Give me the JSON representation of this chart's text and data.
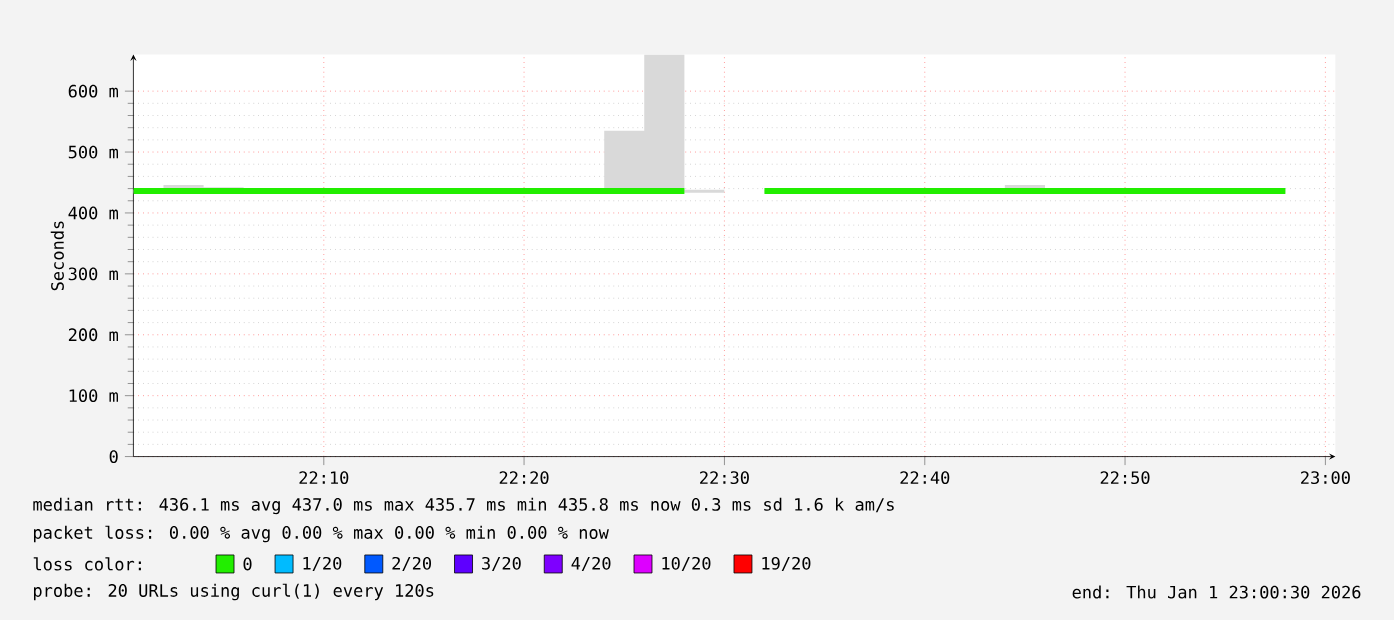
{
  "chart_data": {
    "type": "step",
    "ylabel": "Seconds",
    "x": [
      22.0083,
      22.0333,
      22.0667,
      22.1,
      22.1333,
      22.1667,
      22.2,
      22.2333,
      22.2667,
      22.3,
      22.3333,
      22.3667,
      22.4,
      22.4333,
      22.4667,
      22.5,
      22.5333,
      22.5667,
      22.6,
      22.6333,
      22.6667,
      22.7,
      22.7333,
      22.7667,
      22.8,
      22.8333,
      22.8667,
      22.9,
      22.9333,
      22.9667
    ],
    "series": [
      {
        "name": "0",
        "color": "#22ee00",
        "values": [
          436,
          436,
          436,
          436,
          436,
          436,
          436,
          436,
          436,
          436,
          436,
          436,
          436,
          436,
          436,
          null,
          436,
          436,
          436,
          436,
          436,
          436,
          436,
          436,
          436,
          436,
          436,
          436,
          436,
          436
        ],
        "lower": [
          433,
          433,
          433,
          433,
          433,
          433,
          433,
          433,
          433,
          433,
          433,
          433,
          433,
          433,
          433,
          null,
          433,
          433,
          433,
          433,
          433,
          433,
          433,
          433,
          433,
          433,
          433,
          433,
          433,
          433
        ],
        "upper": [
          438,
          446,
          442,
          438,
          438,
          438,
          438,
          441,
          438,
          438,
          438,
          438,
          535,
          660,
          438,
          null,
          438,
          441,
          438,
          438,
          438,
          440,
          446,
          440,
          438,
          438,
          438,
          438,
          440,
          440
        ]
      },
      {
        "name": "1/20",
        "color": "#00bbff",
        "values": [
          null,
          null,
          null,
          null,
          null,
          null,
          null,
          null,
          null,
          null,
          null,
          null,
          null,
          null,
          null,
          null,
          null,
          null,
          null,
          null,
          null,
          null,
          null,
          null,
          null,
          null,
          null,
          null,
          null,
          null
        ]
      },
      {
        "name": "2/20",
        "color": "#0059ff",
        "values": [
          null,
          null,
          null,
          null,
          null,
          null,
          null,
          null,
          null,
          null,
          null,
          null,
          null,
          null,
          null,
          null,
          null,
          null,
          null,
          null,
          null,
          null,
          null,
          null,
          null,
          null,
          null,
          null,
          null,
          null
        ]
      },
      {
        "name": "3/20",
        "color": "#5e00ff",
        "values": [
          null,
          null,
          null,
          null,
          null,
          null,
          null,
          null,
          null,
          null,
          null,
          null,
          null,
          null,
          null,
          null,
          null,
          null,
          null,
          null,
          null,
          null,
          null,
          null,
          null,
          null,
          null,
          null,
          null,
          null
        ]
      },
      {
        "name": "4/20",
        "color": "#7e00ff",
        "values": [
          null,
          null,
          null,
          null,
          null,
          null,
          null,
          null,
          null,
          null,
          null,
          null,
          null,
          null,
          null,
          null,
          null,
          null,
          null,
          null,
          null,
          null,
          null,
          null,
          null,
          null,
          null,
          null,
          null,
          null
        ]
      },
      {
        "name": "10/20",
        "color": "#dd00ff",
        "values": [
          null,
          null,
          null,
          null,
          null,
          null,
          null,
          null,
          null,
          null,
          null,
          null,
          null,
          null,
          null,
          null,
          null,
          null,
          null,
          null,
          null,
          null,
          null,
          null,
          null,
          null,
          null,
          null,
          null,
          null
        ]
      },
      {
        "name": "19/20",
        "color": "#ff0000",
        "values": [
          null,
          null,
          null,
          null,
          null,
          null,
          null,
          null,
          null,
          null,
          null,
          null,
          null,
          null,
          null,
          null,
          null,
          null,
          null,
          null,
          null,
          null,
          null,
          null,
          null,
          null,
          null,
          null,
          null,
          null
        ]
      }
    ],
    "xlim": [
      22.0083,
      23.0083
    ],
    "ylim": [
      0,
      660
    ],
    "xticks": [
      {
        "value": 22.1667,
        "label": "22:10"
      },
      {
        "value": 22.3333,
        "label": "22:20"
      },
      {
        "value": 22.5,
        "label": "22:30"
      },
      {
        "value": 22.6667,
        "label": "22:40"
      },
      {
        "value": 22.8333,
        "label": "22:50"
      },
      {
        "value": 23.0,
        "label": "23:00"
      }
    ],
    "yticks": [
      0,
      {
        "value": 100,
        "label": "100 m"
      },
      {
        "value": 200,
        "label": "200 m"
      },
      {
        "value": 300,
        "label": "300 m"
      },
      {
        "value": 400,
        "label": "400 m"
      },
      {
        "value": 500,
        "label": "500 m"
      },
      {
        "value": 600,
        "label": "600 m"
      }
    ],
    "grid": true,
    "legend": "bottom",
    "legend_title": "loss color:",
    "marker": "none",
    "line_style": "solid",
    "annotations": [
      "median rtt:  436.1 ms avg  437.0 ms max  435.7 ms min  435.8 ms now  0.3 ms sd  1.6 k am/s",
      "packet loss: 0.00 % avg  0.00 % max  0.00 % min  0.00 % now",
      "probe:       20 URLs using curl(1) every 120s",
      "end: Thu Jan  1 23:00:30 2026"
    ]
  }
}
